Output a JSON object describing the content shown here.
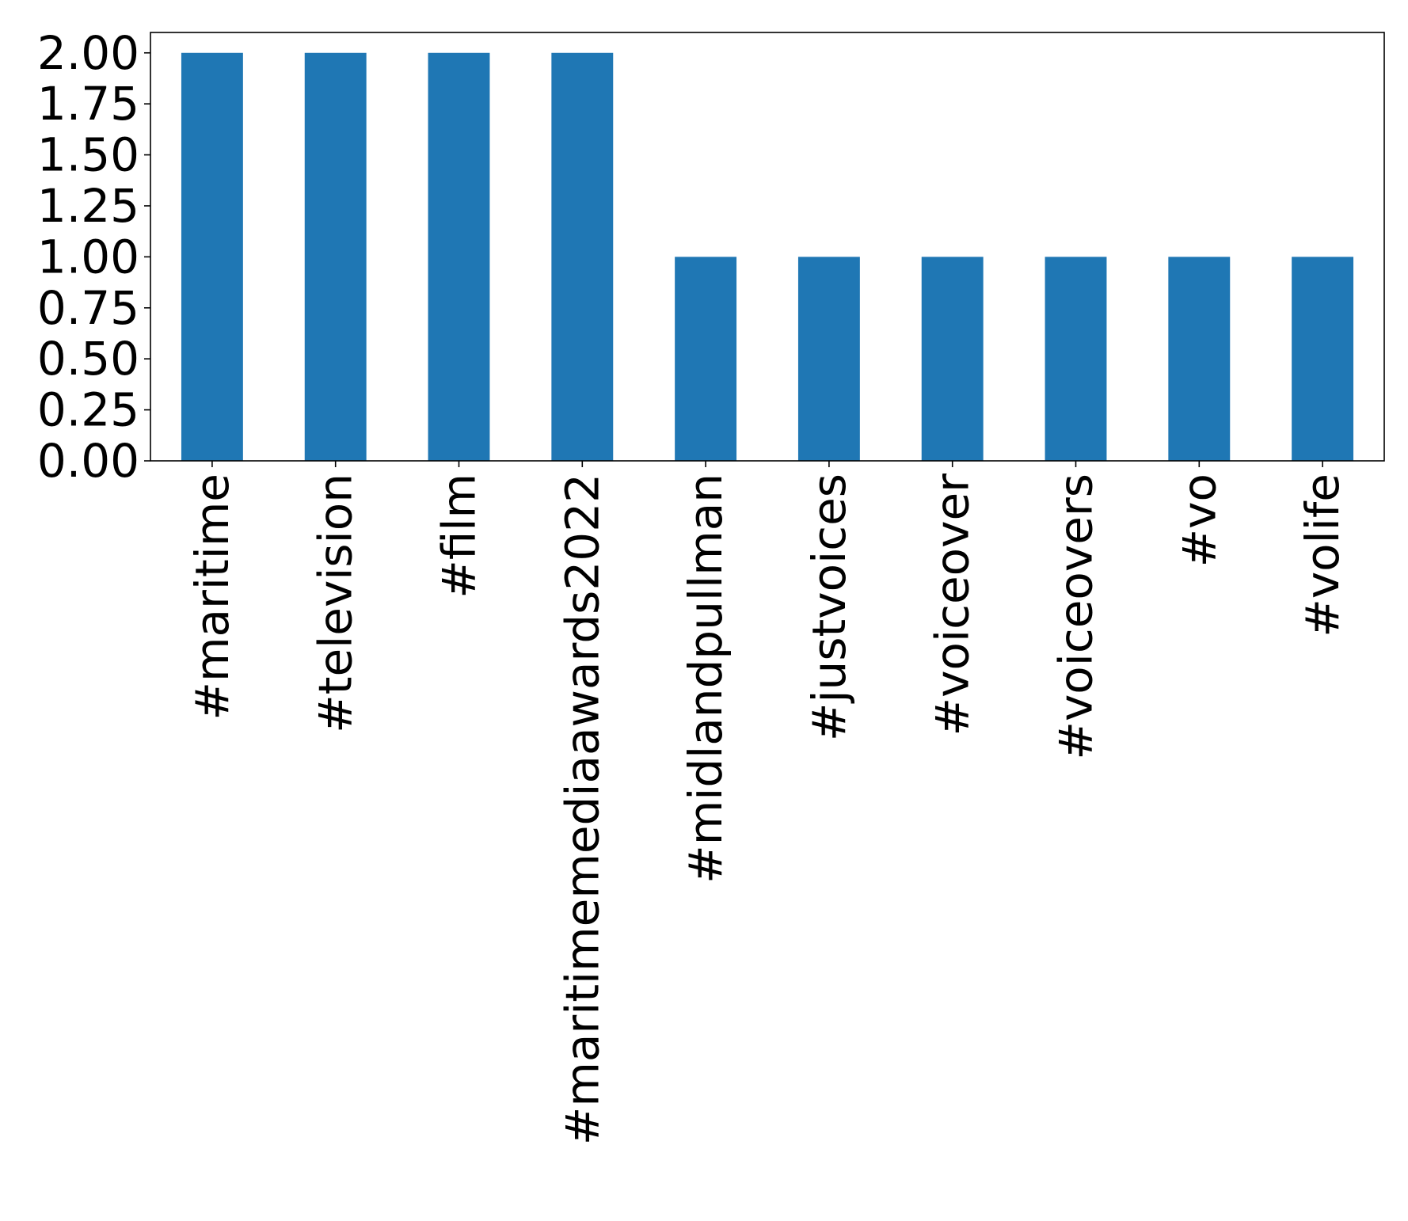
{
  "chart_data": {
    "type": "bar",
    "title": "",
    "xlabel": "",
    "ylabel": "",
    "categories": [
      "#maritime",
      "#television",
      "#film",
      "#maritimemediaawards2022",
      "#midlandpullman",
      "#justvoices",
      "#voiceover",
      "#voiceovers",
      "#vo",
      "#volife"
    ],
    "values": [
      2,
      2,
      2,
      2,
      1,
      1,
      1,
      1,
      1,
      1
    ],
    "ylim": [
      0,
      2.1
    ],
    "yticks": [
      "0.00",
      "0.25",
      "0.50",
      "0.75",
      "1.00",
      "1.25",
      "1.50",
      "1.75",
      "2.00"
    ],
    "bar_color": "#1f77b4",
    "grid": false,
    "legend": "none"
  }
}
